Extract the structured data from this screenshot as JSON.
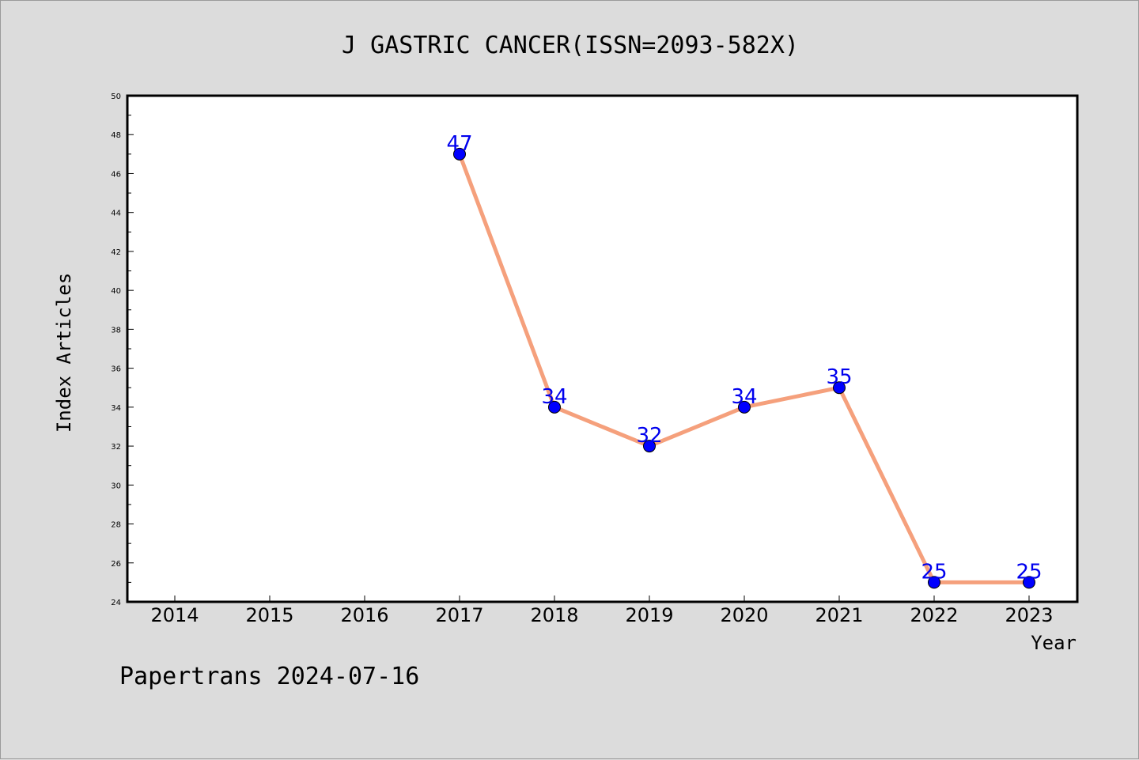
{
  "footer_text": "Papertrans 2024-07-16",
  "colors": {
    "background": "#dcdcdc",
    "plot_background": "#ffffff",
    "line": "#f5a07c",
    "marker": "#0000ff",
    "data_label": "#0000ee"
  },
  "chart_data": {
    "type": "line",
    "title": "J GASTRIC CANCER(ISSN=2093-582X)",
    "xlabel": "Year",
    "ylabel": "Index Articles",
    "x_categories": [
      "2014",
      "2015",
      "2016",
      "2017",
      "2018",
      "2019",
      "2020",
      "2021",
      "2022",
      "2023"
    ],
    "ylim": [
      24,
      50
    ],
    "yticks": [
      24,
      26,
      28,
      30,
      32,
      34,
      36,
      38,
      40,
      42,
      44,
      46,
      48,
      50
    ],
    "grid": false,
    "series": [
      {
        "x": [
          "2017",
          "2018",
          "2019",
          "2020",
          "2021",
          "2022",
          "2023"
        ],
        "values": [
          47,
          34,
          32,
          34,
          35,
          25,
          25
        ]
      }
    ]
  }
}
